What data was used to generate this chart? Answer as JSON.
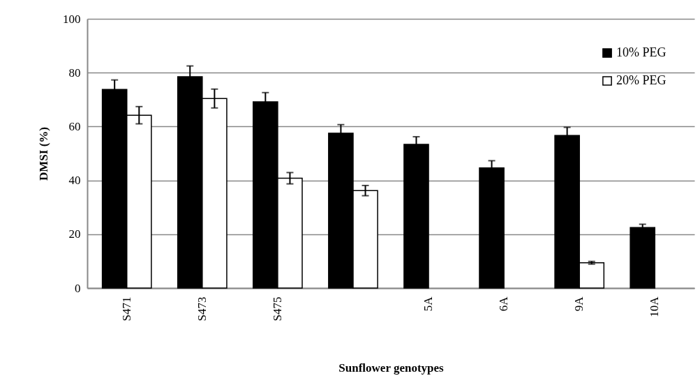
{
  "chart_data": {
    "type": "bar",
    "xlabel": "Sunflower genotypes",
    "ylabel": "DMSI (%)",
    "categories": [
      "S471",
      "S473",
      "S475",
      null,
      "5A",
      "6A",
      "9A",
      "10A"
    ],
    "series": [
      {
        "name": "10% PEG",
        "color": "#000000",
        "values": [
          73.8,
          78.5,
          69.2,
          57.5,
          53.4,
          44.6,
          56.7,
          22.5
        ],
        "errors": [
          3.5,
          4,
          3.4,
          3.2,
          2.8,
          2.7,
          3,
          1.2
        ]
      },
      {
        "name": "20% PEG",
        "color": "#ffffff",
        "values": [
          64.2,
          70.4,
          40.8,
          36.2,
          null,
          null,
          9.4,
          null
        ],
        "errors": [
          3.2,
          3.5,
          2.1,
          1.9,
          null,
          null,
          0.5,
          null
        ]
      }
    ],
    "ylim": [
      0,
      100
    ],
    "yticks": [
      0,
      20,
      40,
      60,
      80,
      100
    ],
    "grid": "y",
    "legend": "top right"
  }
}
